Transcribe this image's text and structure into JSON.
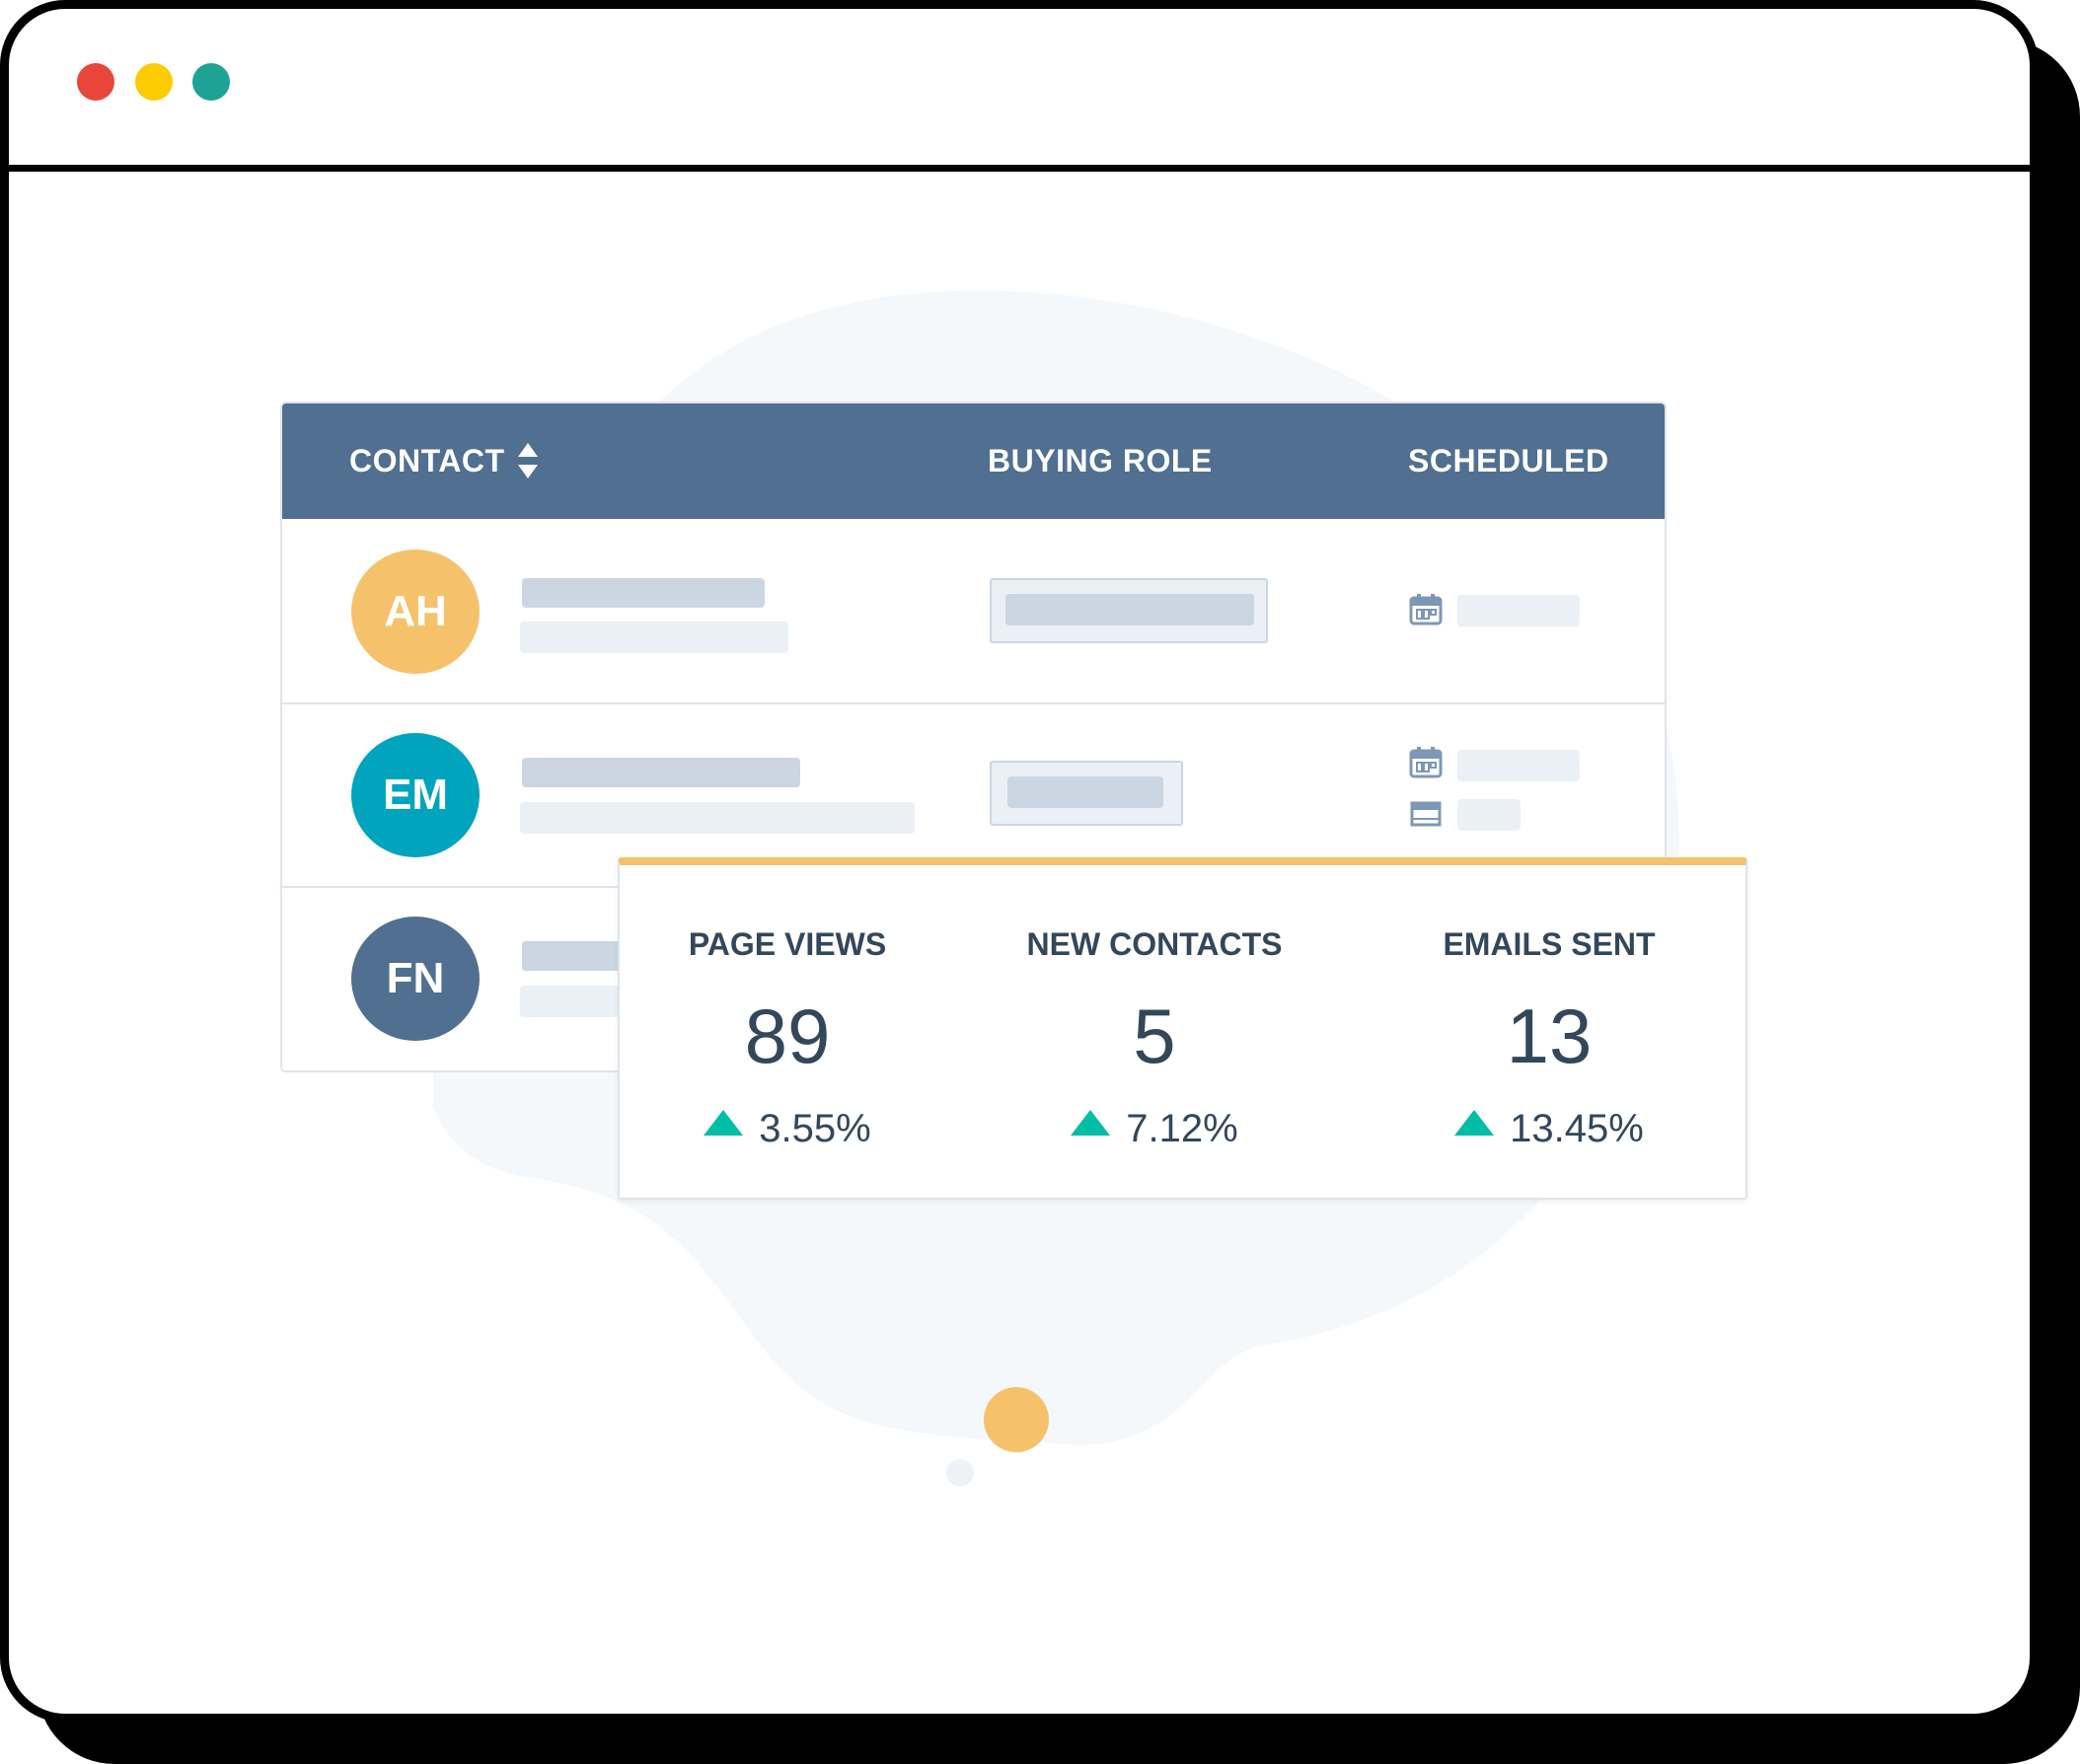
{
  "colors": {
    "header_bg": "#516f90",
    "text_dark": "#33475b",
    "accent_orange": "#f5c26b",
    "accent_teal": "#00bda5",
    "traffic_red": "#e8463a",
    "traffic_yellow": "#fccb02",
    "traffic_green": "#1fa296"
  },
  "window": {
    "controls": [
      "close",
      "minimize",
      "zoom"
    ]
  },
  "table": {
    "columns": {
      "contact": "CONTACT",
      "buying_role": "BUYING ROLE",
      "scheduled": "SCHEDULED"
    },
    "sort_icon": "sort-arrows-icon",
    "rows": [
      {
        "initials": "AH",
        "avatar_color": "#f5c26b",
        "scheduled_icons": [
          "calendar-icon"
        ]
      },
      {
        "initials": "EM",
        "avatar_color": "#00a4bd",
        "scheduled_icons": [
          "calendar-icon",
          "email-icon"
        ]
      },
      {
        "initials": "FN",
        "avatar_color": "#516f90",
        "scheduled_icons": []
      }
    ]
  },
  "stats": [
    {
      "label": "PAGE VIEWS",
      "value": "89",
      "change": "3.55%",
      "trend_icon": "triangle-up-icon"
    },
    {
      "label": "NEW CONTACTS",
      "value": "5",
      "change": "7.12%",
      "trend_icon": "triangle-up-icon"
    },
    {
      "label": "EMAILS SENT",
      "value": "13",
      "change": "13.45%",
      "trend_icon": "triangle-up-icon"
    }
  ]
}
